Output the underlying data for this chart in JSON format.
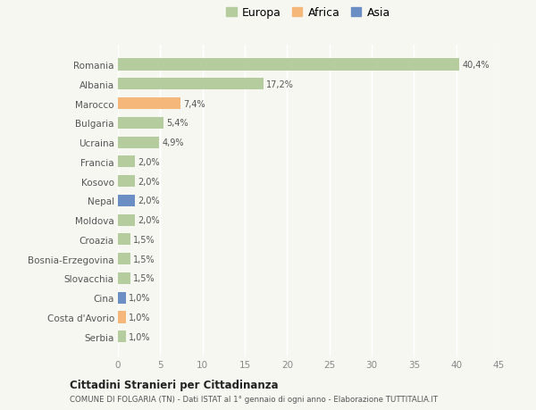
{
  "countries": [
    "Romania",
    "Albania",
    "Marocco",
    "Bulgaria",
    "Ucraina",
    "Francia",
    "Kosovo",
    "Nepal",
    "Moldova",
    "Croazia",
    "Bosnia-Erzegovina",
    "Slovacchia",
    "Cina",
    "Costa d'Avorio",
    "Serbia"
  ],
  "values": [
    40.4,
    17.2,
    7.4,
    5.4,
    4.9,
    2.0,
    2.0,
    2.0,
    2.0,
    1.5,
    1.5,
    1.5,
    1.0,
    1.0,
    1.0
  ],
  "labels": [
    "40,4%",
    "17,2%",
    "7,4%",
    "5,4%",
    "4,9%",
    "2,0%",
    "2,0%",
    "2,0%",
    "2,0%",
    "1,5%",
    "1,5%",
    "1,5%",
    "1,0%",
    "1,0%",
    "1,0%"
  ],
  "continents": [
    "Europa",
    "Europa",
    "Africa",
    "Europa",
    "Europa",
    "Europa",
    "Europa",
    "Asia",
    "Europa",
    "Europa",
    "Europa",
    "Europa",
    "Asia",
    "Africa",
    "Europa"
  ],
  "colors": {
    "Europa": "#b5cc9e",
    "Africa": "#f5b87a",
    "Asia": "#6b8ec5"
  },
  "title1": "Cittadini Stranieri per Cittadinanza",
  "title2": "COMUNE DI FOLGARIA (TN) - Dati ISTAT al 1° gennaio di ogni anno - Elaborazione TUTTITALIA.IT",
  "xlim": [
    0,
    45
  ],
  "xticks": [
    0,
    5,
    10,
    15,
    20,
    25,
    30,
    35,
    40,
    45
  ],
  "background_color": "#f7f7f2",
  "grid_color": "#ffffff",
  "bar_height": 0.6
}
